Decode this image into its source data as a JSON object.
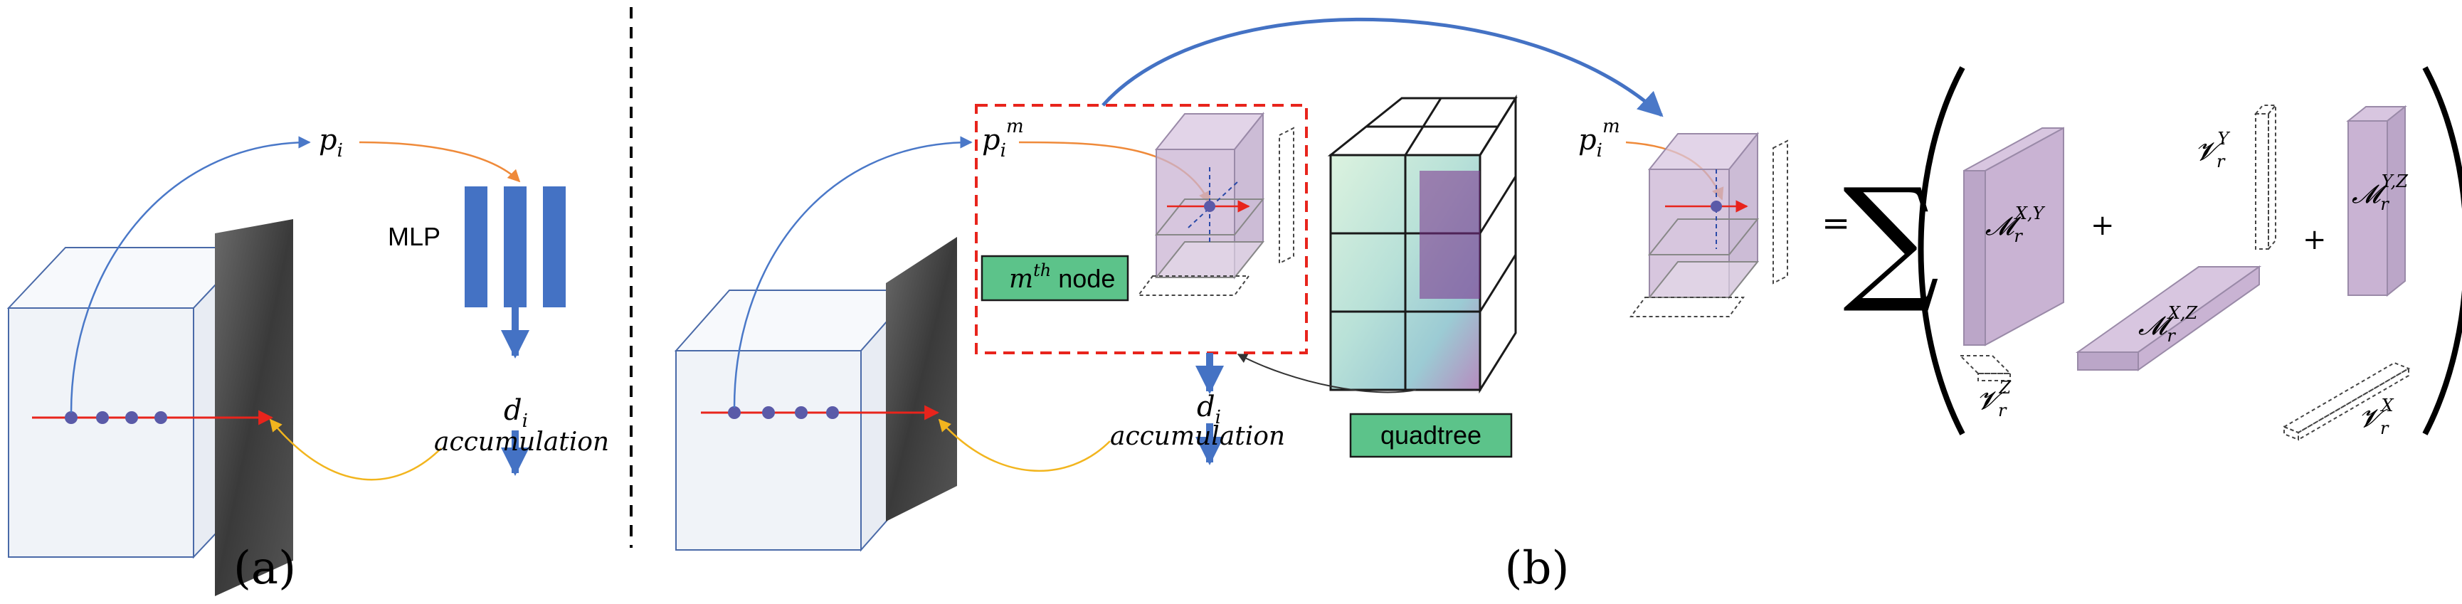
{
  "panel_a": {
    "caption": "(a)",
    "point_label": "p",
    "point_sub": "i",
    "mlp_label": "MLP",
    "density_label": "d",
    "density_sub": "i",
    "accum_label": "accumulation"
  },
  "panel_b": {
    "caption": "(b)",
    "point_label": "p",
    "point_sub": "i",
    "point_sup": "m",
    "node_label_sup": "th",
    "node_label_pre": "m",
    "node_label_post": " node",
    "quadtree_label": "quadtree",
    "density_label": "d",
    "density_sub": "i",
    "accum_label": "accumulation",
    "point2_label": "p",
    "point2_sub": "i",
    "point2_sup": "m"
  },
  "decomposition": {
    "equals": "=",
    "sum": "∑",
    "plus1": "+",
    "plus2": "+",
    "m_xy": "𝓜",
    "m_xy_sub": "r",
    "m_xy_sup": "X,Y",
    "m_xz": "𝓜",
    "m_xz_sub": "r",
    "m_xz_sup": "X,Z",
    "m_yz": "𝓜",
    "m_yz_sub": "r",
    "m_yz_sup": "Y,Z",
    "v_z": "𝓥",
    "v_z_sub": "r",
    "v_z_sup": "Z",
    "v_y": "𝓥",
    "v_y_sub": "r",
    "v_y_sup": "Y",
    "v_x": "𝓥",
    "v_x_sub": "r",
    "v_x_sup": "X"
  },
  "colors": {
    "ray": "#e8241c",
    "sample": "#5a5aa8",
    "blue_arrow": "#4a78c8",
    "orange_arrow": "#ef8a3a",
    "yellow_arrow": "#f2b51e",
    "mlp_bar": "#4472c4",
    "green_box": "#5cc38a",
    "red_dash": "#e8241c",
    "purple_box": "#c9b3d3"
  }
}
